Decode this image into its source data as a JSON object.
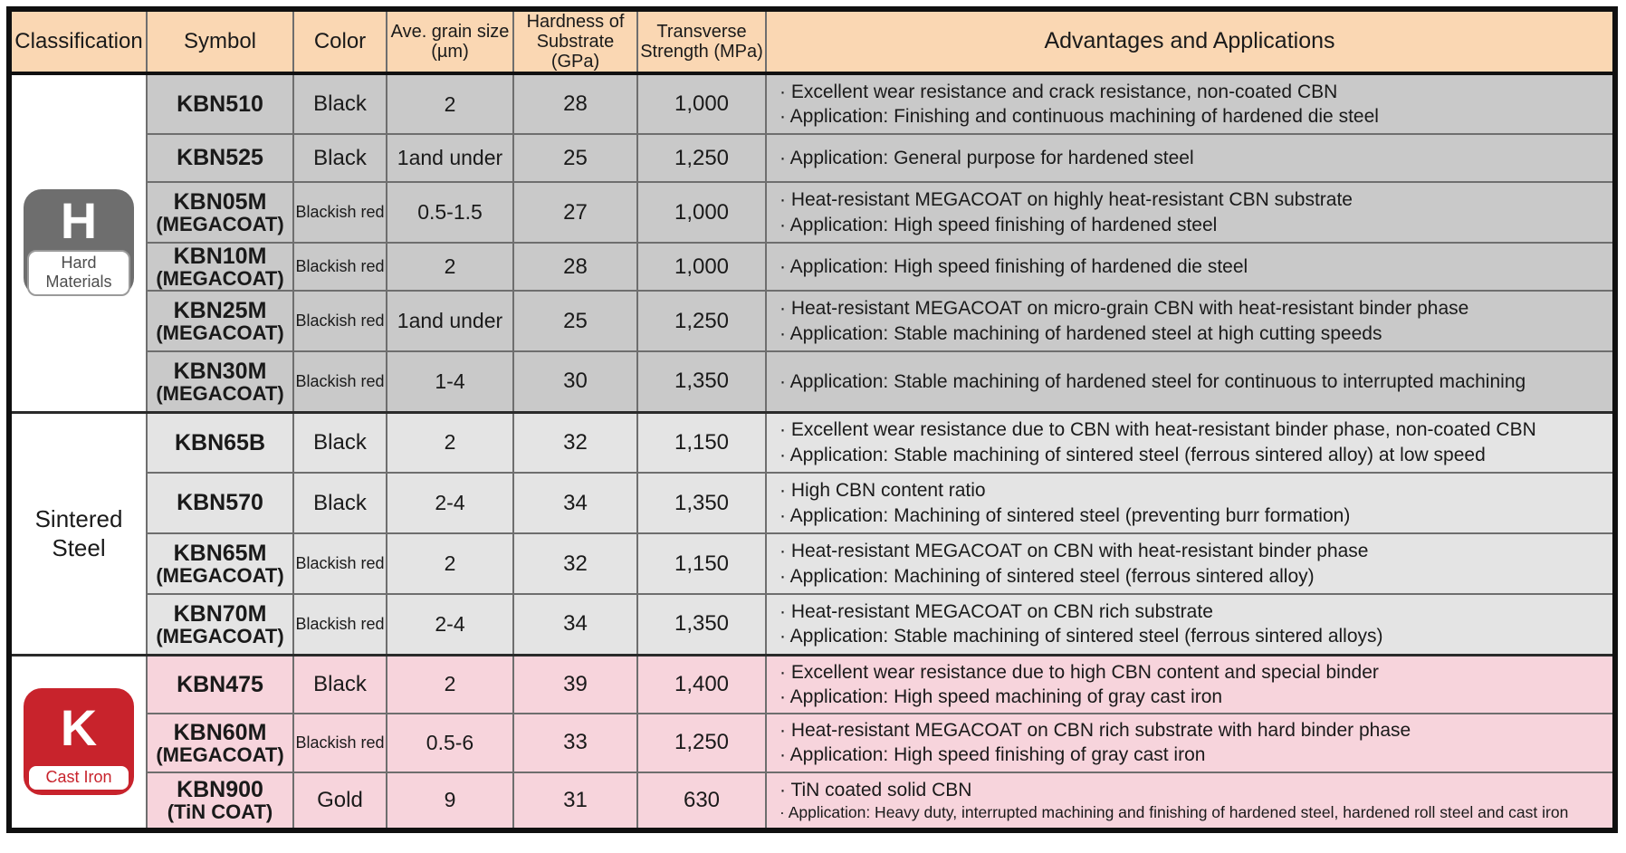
{
  "header": {
    "classification": "Classification",
    "symbol": "Symbol",
    "color": "Color",
    "grain": "Ave. grain size\n(µm)",
    "hardness": "Hardness of\nSubstrate (GPa)",
    "strength": "Transverse\nStrength (MPa)",
    "advantages": "Advantages and Applications"
  },
  "groups": {
    "hard": {
      "letter": "H",
      "label": "Hard Materials",
      "badge_color": "#6e6e6e"
    },
    "sintered": {
      "label": "Sintered\nSteel"
    },
    "cast": {
      "letter": "K",
      "label": "Cast Iron",
      "badge_color": "#c8232c"
    }
  },
  "colors": {
    "header_bg": "#fad7b3",
    "hard_row_bg": "#c9c9c9",
    "sintered_row_bg": "#e4e4e4",
    "cast_row_bg": "#f7d4dc"
  },
  "rows": [
    {
      "symbol": "KBN510",
      "color": "Black",
      "grain": "2",
      "hardness": "28",
      "strength": "1,000",
      "adv1": "· Excellent wear resistance and crack resistance, non-coated CBN",
      "adv2": "· Application: Finishing and continuous machining of hardened die steel"
    },
    {
      "symbol": "KBN525",
      "color": "Black",
      "grain": "1and under",
      "hardness": "25",
      "strength": "1,250",
      "adv1": "· Application: General purpose for hardened steel"
    },
    {
      "symbol": "KBN05M",
      "symbol2": "(MEGACOAT)",
      "color": "Blackish red",
      "grain": "0.5-1.5",
      "hardness": "27",
      "strength": "1,000",
      "adv1": "· Heat-resistant MEGACOAT on highly heat-resistant CBN substrate",
      "adv2": "· Application: High speed finishing of hardened steel"
    },
    {
      "symbol": "KBN10M",
      "symbol2": "(MEGACOAT)",
      "color": "Blackish red",
      "grain": "2",
      "hardness": "28",
      "strength": "1,000",
      "adv1": "· Application: High speed finishing of hardened die steel"
    },
    {
      "symbol": "KBN25M",
      "symbol2": "(MEGACOAT)",
      "color": "Blackish red",
      "grain": "1and under",
      "hardness": "25",
      "strength": "1,250",
      "adv1": "· Heat-resistant MEGACOAT on micro-grain CBN with heat-resistant binder phase",
      "adv2": "· Application: Stable machining of hardened steel at high cutting speeds"
    },
    {
      "symbol": "KBN30M",
      "symbol2": "(MEGACOAT)",
      "color": "Blackish red",
      "grain": "1-4",
      "hardness": "30",
      "strength": "1,350",
      "adv1": "· Application: Stable machining of hardened steel for continuous to interrupted machining"
    },
    {
      "symbol": "KBN65B",
      "color": "Black",
      "grain": "2",
      "hardness": "32",
      "strength": "1,150",
      "adv1": "· Excellent wear resistance due to CBN with heat-resistant binder phase, non-coated CBN",
      "adv2": "· Application: Stable machining of sintered steel (ferrous sintered alloy) at low speed"
    },
    {
      "symbol": "KBN570",
      "color": "Black",
      "grain": "2-4",
      "hardness": "34",
      "strength": "1,350",
      "adv1": "· High CBN content ratio",
      "adv2": "· Application: Machining of sintered steel (preventing burr formation)"
    },
    {
      "symbol": "KBN65M",
      "symbol2": "(MEGACOAT)",
      "color": "Blackish red",
      "grain": "2",
      "hardness": "32",
      "strength": "1,150",
      "adv1": "· Heat-resistant MEGACOAT on CBN with heat-resistant binder phase",
      "adv2": "· Application: Machining of sintered steel (ferrous sintered alloy)"
    },
    {
      "symbol": "KBN70M",
      "symbol2": "(MEGACOAT)",
      "color": "Blackish red",
      "grain": "2-4",
      "hardness": "34",
      "strength": "1,350",
      "adv1": "· Heat-resistant MEGACOAT on CBN rich substrate",
      "adv2": "· Application: Stable machining of sintered steel (ferrous sintered alloys)"
    },
    {
      "symbol": "KBN475",
      "color": "Black",
      "grain": "2",
      "hardness": "39",
      "strength": "1,400",
      "adv1": "· Excellent wear resistance due to high CBN content and special binder",
      "adv2": "· Application: High speed machining of gray cast iron"
    },
    {
      "symbol": "KBN60M",
      "symbol2": "(MEGACOAT)",
      "color": "Blackish red",
      "grain": "0.5-6",
      "hardness": "33",
      "strength": "1,250",
      "adv1": "· Heat-resistant MEGACOAT on CBN rich substrate with hard binder phase",
      "adv2": "· Application: High speed finishing of gray cast iron"
    },
    {
      "symbol": "KBN900",
      "symbol2": "(TiN COAT)",
      "color": "Gold",
      "grain": "9",
      "hardness": "31",
      "strength": "630",
      "adv1": "· TiN coated solid CBN",
      "adv2": "· Application: Heavy duty, interrupted machining and finishing of hardened steel, hardened roll steel and cast iron"
    }
  ]
}
